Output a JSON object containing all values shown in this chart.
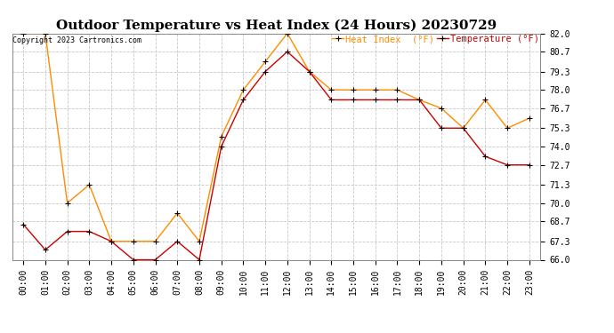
{
  "title": "Outdoor Temperature vs Heat Index (24 Hours) 20230729",
  "copyright": "Copyright 2023 Cartronics.com",
  "legend_heat": "Heat Index  (°F)",
  "legend_temp": "Temperature (°F)",
  "hours": [
    "00:00",
    "01:00",
    "02:00",
    "03:00",
    "04:00",
    "05:00",
    "06:00",
    "07:00",
    "08:00",
    "09:00",
    "10:00",
    "11:00",
    "12:00",
    "13:00",
    "14:00",
    "15:00",
    "16:00",
    "17:00",
    "18:00",
    "19:00",
    "20:00",
    "21:00",
    "22:00",
    "23:00"
  ],
  "temperature": [
    68.5,
    66.7,
    68.0,
    68.0,
    67.3,
    66.0,
    66.0,
    67.3,
    66.0,
    74.0,
    77.3,
    79.3,
    80.7,
    79.3,
    77.3,
    77.3,
    77.3,
    77.3,
    77.3,
    75.3,
    75.3,
    73.3,
    72.7,
    72.7
  ],
  "heat_index": [
    82.0,
    82.0,
    70.0,
    71.3,
    67.3,
    67.3,
    67.3,
    69.3,
    67.3,
    74.7,
    78.0,
    80.0,
    82.0,
    79.3,
    78.0,
    78.0,
    78.0,
    78.0,
    77.3,
    76.7,
    75.3,
    77.3,
    75.3,
    76.0
  ],
  "temp_color": "#cc0000",
  "heat_color": "#ff8c00",
  "marker_color": "#000000",
  "bg_color": "#ffffff",
  "grid_color": "#c8c8c8",
  "ylim": [
    66.0,
    82.0
  ],
  "yticks": [
    66.0,
    67.3,
    68.7,
    70.0,
    71.3,
    72.7,
    74.0,
    75.3,
    76.7,
    78.0,
    79.3,
    80.7,
    82.0
  ],
  "title_fontsize": 11,
  "legend_fontsize": 7.5,
  "tick_fontsize": 7,
  "copyright_fontsize": 6
}
